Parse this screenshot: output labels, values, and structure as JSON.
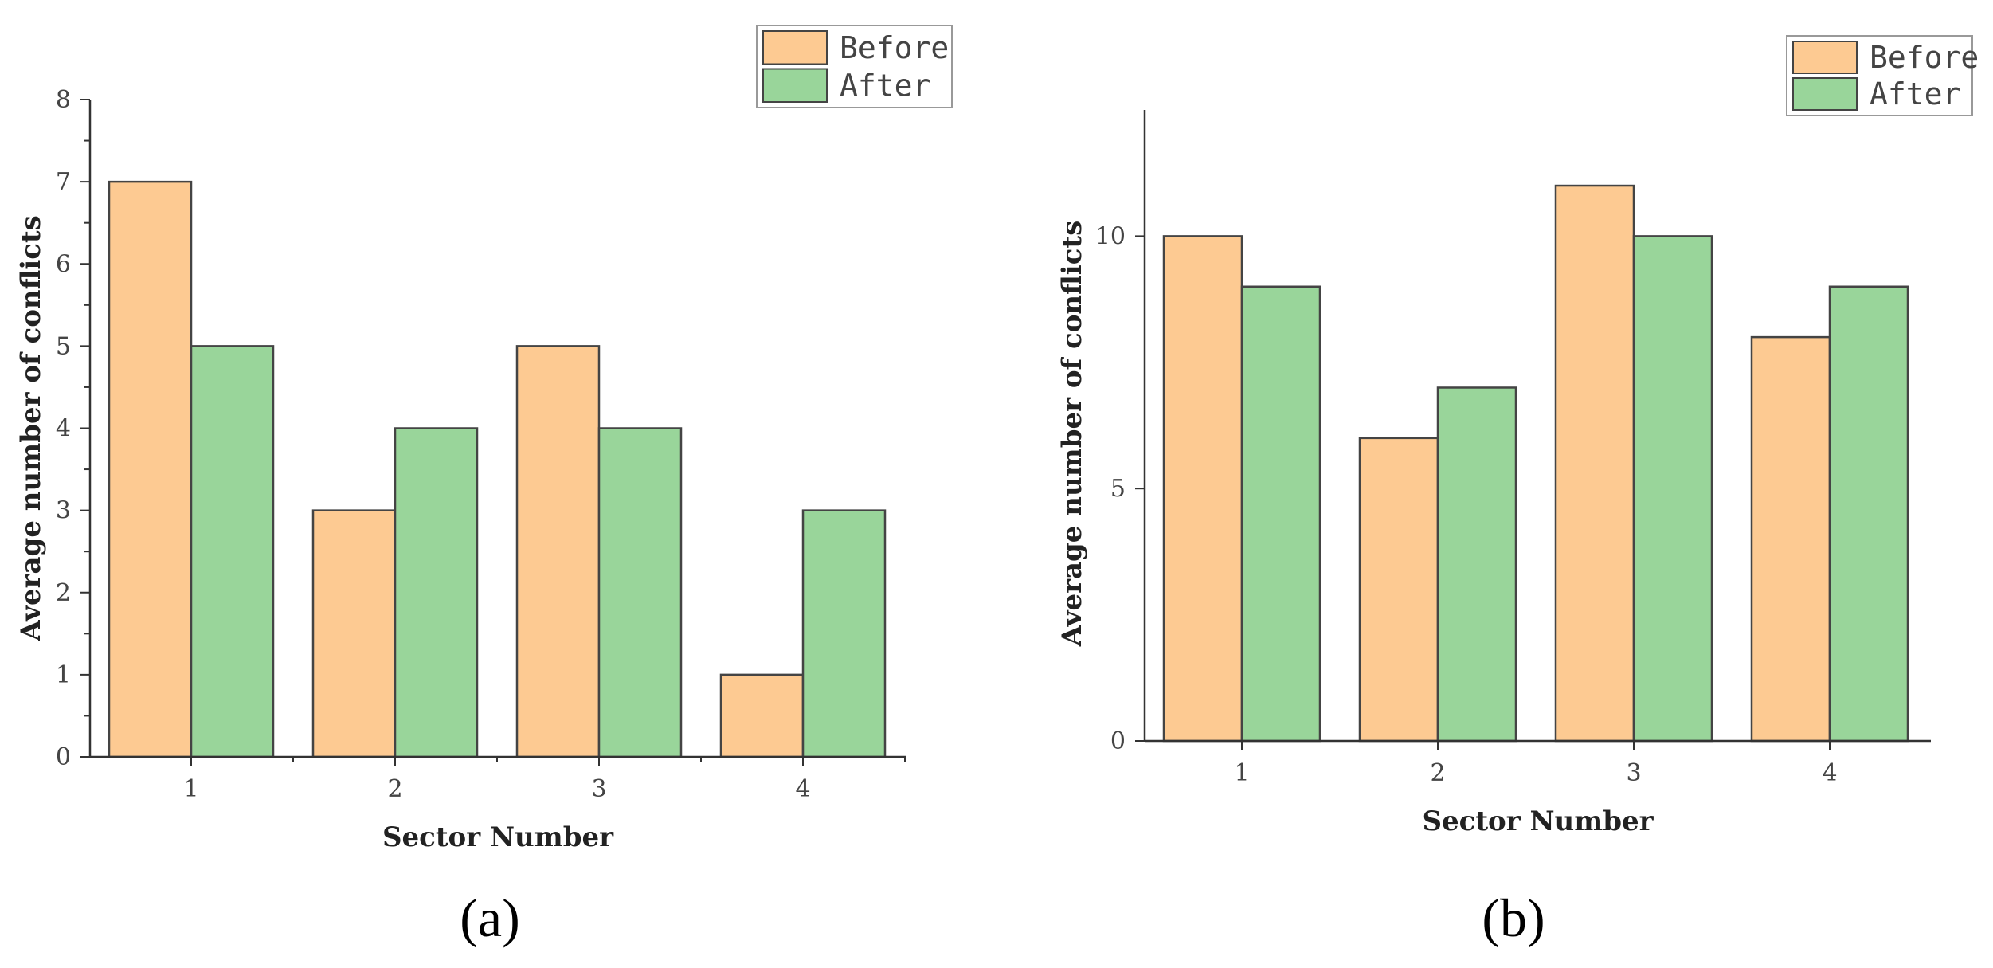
{
  "chart_data": [
    {
      "type": "bar",
      "panel_label": "(a)",
      "categories": [
        "1",
        "2",
        "3",
        "4"
      ],
      "series": [
        {
          "name": "Before",
          "values": [
            7,
            3,
            5,
            1
          ]
        },
        {
          "name": "After",
          "values": [
            5,
            4,
            4,
            3
          ]
        }
      ],
      "xlabel": "Sector Number",
      "ylabel": "Average number of conflicts",
      "ylim": [
        0,
        8
      ],
      "yticks": [
        0,
        1,
        2,
        3,
        4,
        5,
        6,
        7,
        8
      ],
      "grid": false,
      "legend_position": "top-right"
    },
    {
      "type": "bar",
      "panel_label": "(b)",
      "categories": [
        "1",
        "2",
        "3",
        "4"
      ],
      "series": [
        {
          "name": "Before",
          "values": [
            10,
            6,
            11,
            8
          ]
        },
        {
          "name": "After",
          "values": [
            9,
            7,
            10,
            9
          ]
        }
      ],
      "xlabel": "Sector Number",
      "ylabel": "Average number of conflicts",
      "ylim": [
        0,
        12.5
      ],
      "yticks": [
        0,
        5,
        10
      ],
      "grid": false,
      "legend_position": "top-right"
    }
  ],
  "colors": {
    "before": "#fdca92",
    "after": "#99d59a",
    "stroke": "#444444",
    "axis": "#333333"
  }
}
